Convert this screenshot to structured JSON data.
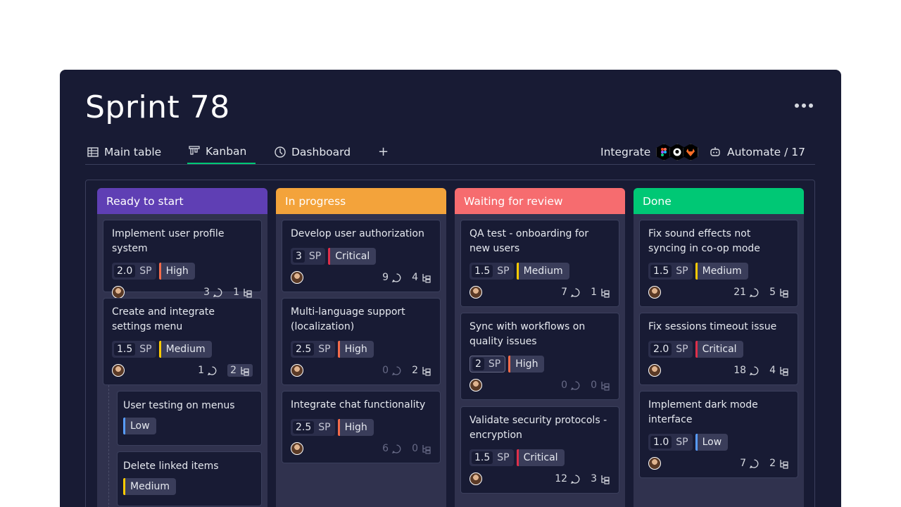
{
  "board": {
    "title": "Sprint 78"
  },
  "tabs": [
    {
      "label": "Main table",
      "icon": "table-icon"
    },
    {
      "label": "Kanban",
      "icon": "kanban-icon"
    },
    {
      "label": "Dashboard",
      "icon": "dashboard-icon"
    }
  ],
  "toolbar": {
    "add_tab": "+",
    "integrate_label": "Integrate",
    "automate_label": "Automate / 17"
  },
  "colors": {
    "ready": "#5f3fb4",
    "progress": "#f3a33b",
    "review": "#f66c6f",
    "done": "#00c875",
    "high": "#f36b4b",
    "critical": "#df2f4a",
    "medium": "#ffcb00",
    "low": "#579bfc"
  },
  "columns": [
    {
      "name": "Ready to start",
      "cards": [
        {
          "title": "Implement user profile system",
          "sp": "2.0",
          "priority": "High",
          "comments": "3",
          "subitems": "1"
        },
        {
          "title": "Create and integrate settings menu",
          "sp": "1.5",
          "priority": "Medium",
          "comments": "1",
          "subitems": "2"
        }
      ],
      "subitems": [
        {
          "title": "User testing on menus",
          "priority": "Low"
        },
        {
          "title": "Delete linked items",
          "priority": "Medium"
        }
      ]
    },
    {
      "name": "In progress",
      "cards": [
        {
          "title": "Develop user authorization",
          "sp": "3",
          "priority": "Critical",
          "comments": "9",
          "subitems": "4"
        },
        {
          "title": "Multi-language support (localization)",
          "sp": "2.5",
          "priority": "High",
          "comments": "0",
          "subitems": "2"
        },
        {
          "title": "Integrate chat functionality",
          "sp": "2.5",
          "priority": "High",
          "comments": "6",
          "subitems": "0"
        }
      ]
    },
    {
      "name": "Waiting for review",
      "cards": [
        {
          "title": "QA test - onboarding for new users",
          "sp": "1.5",
          "priority": "Medium",
          "comments": "7",
          "subitems": "1"
        },
        {
          "title": "Sync with workflows on quality issues",
          "sp": "2",
          "priority": "High",
          "comments": "0",
          "subitems": "0"
        },
        {
          "title": "Validate security protocols - encryption",
          "sp": "1.5",
          "priority": "Critical",
          "comments": "12",
          "subitems": "3"
        }
      ]
    },
    {
      "name": "Done",
      "cards": [
        {
          "title": "Fix sound effects not syncing in co-op mode",
          "sp": "1.5",
          "priority": "Medium",
          "comments": "21",
          "subitems": "5"
        },
        {
          "title": "Fix sessions timeout issue",
          "sp": "2.0",
          "priority": "Critical",
          "comments": "18",
          "subitems": "4"
        },
        {
          "title": "Implement dark mode interface",
          "sp": "1.0",
          "priority": "Low",
          "comments": "7",
          "subitems": "2"
        }
      ]
    }
  ],
  "sp_unit": "SP"
}
